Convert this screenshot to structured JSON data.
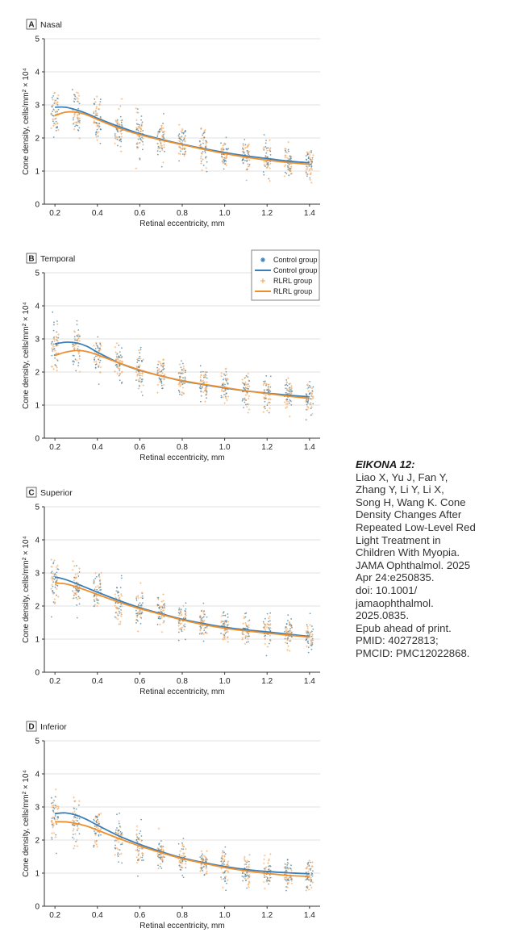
{
  "caption": {
    "title": "EIKONA 12:",
    "text": "Liao X, Yu J, Fan Y,\nZhang Y, Li Y, Li X,\nSong H, Wang K. Cone\nDensity Changes After\nRepeated Low-Level Red\nLight Treatment in\nChildren With Myopia.\nJAMA Ophthalmol. 2025\nApr 24:e250835.\ndoi: 10.1001/\njamaophthalmol.\n2025.0835.\nEpub ahead of print.\nPMID: 40272813;\nPMCID: PMC12022868."
  },
  "legend": {
    "entries": [
      {
        "label": "Control group",
        "kind": "points",
        "color": "#3a7fb8"
      },
      {
        "label": "Control group",
        "kind": "line",
        "color": "#3a7fb8"
      },
      {
        "label": "RLRL group",
        "kind": "points",
        "color": "#f0a24a"
      },
      {
        "label": "RLRL group",
        "kind": "line",
        "color": "#ee8f2c"
      }
    ]
  },
  "colors": {
    "control": "#3a7fb8",
    "rlrl": "#ee8f2c",
    "grid": "#d9d9d9",
    "axis": "#333333"
  },
  "chart_data": [
    {
      "type": "scatter",
      "panel_label": "A",
      "title": "Nasal",
      "xlabel": "Retinal eccentricity, mm",
      "ylabel": "Cone density, cells/mm² × 10⁴",
      "xlim": [
        0.15,
        1.45
      ],
      "ylim": [
        0,
        5
      ],
      "x_ticks": [
        0.2,
        0.4,
        0.6,
        0.8,
        1.0,
        1.2,
        1.4
      ],
      "x_tick_labels": [
        "0.2",
        "0.4",
        "0.6",
        "0.8",
        "1.0",
        "1.2",
        "1.4"
      ],
      "y_ticks": [
        0,
        1,
        2,
        3,
        4,
        5
      ],
      "y_tick_labels": [
        "0",
        "1",
        "2",
        "3",
        "4",
        "5"
      ],
      "grid": "horizontal",
      "series": [
        {
          "name": "Control group",
          "kind": "fit-line",
          "x": [
            0.2,
            0.25,
            0.3,
            0.35,
            0.4,
            0.5,
            0.6,
            0.7,
            0.8,
            0.9,
            1.0,
            1.1,
            1.2,
            1.3,
            1.4
          ],
          "y": [
            2.93,
            2.93,
            2.85,
            2.74,
            2.6,
            2.35,
            2.13,
            1.96,
            1.81,
            1.68,
            1.56,
            1.46,
            1.38,
            1.3,
            1.25
          ]
        },
        {
          "name": "RLRL group",
          "kind": "fit-line",
          "x": [
            0.2,
            0.25,
            0.3,
            0.35,
            0.4,
            0.5,
            0.6,
            0.7,
            0.8,
            0.9,
            1.0,
            1.1,
            1.2,
            1.3,
            1.4
          ],
          "y": [
            2.68,
            2.78,
            2.78,
            2.7,
            2.56,
            2.3,
            2.1,
            1.94,
            1.8,
            1.66,
            1.53,
            1.42,
            1.33,
            1.26,
            1.2
          ]
        }
      ],
      "scatter_mean": [
        2.85,
        2.75,
        2.55,
        2.3,
        2.1,
        1.95,
        1.8,
        1.66,
        1.53,
        1.43,
        1.35,
        1.28,
        1.22
      ],
      "scatter_x": [
        0.2,
        0.3,
        0.4,
        0.5,
        0.6,
        0.7,
        0.8,
        0.9,
        1.0,
        1.1,
        1.2,
        1.3,
        1.4
      ]
    },
    {
      "type": "scatter",
      "panel_label": "B",
      "title": "Temporal",
      "xlabel": "Retinal eccentricity, mm",
      "ylabel": "Cone density, cells/mm² × 10⁴",
      "xlim": [
        0.15,
        1.45
      ],
      "ylim": [
        0,
        5
      ],
      "x_ticks": [
        0.2,
        0.4,
        0.6,
        0.8,
        1.0,
        1.2,
        1.4
      ],
      "x_tick_labels": [
        "0.2",
        "0.4",
        "0.6",
        "0.8",
        "1.0",
        "1.2",
        "1.4"
      ],
      "y_ticks": [
        0,
        1,
        2,
        3,
        4,
        5
      ],
      "y_tick_labels": [
        "0",
        "1",
        "2",
        "3",
        "4",
        "5"
      ],
      "grid": "horizontal",
      "legend_position": "top-right",
      "series": [
        {
          "name": "Control group",
          "kind": "fit-line",
          "x": [
            0.2,
            0.25,
            0.3,
            0.35,
            0.4,
            0.5,
            0.6,
            0.7,
            0.8,
            0.9,
            1.0,
            1.1,
            1.2,
            1.3,
            1.4
          ],
          "y": [
            2.85,
            2.9,
            2.88,
            2.78,
            2.6,
            2.28,
            2.05,
            1.88,
            1.73,
            1.62,
            1.52,
            1.43,
            1.36,
            1.3,
            1.25
          ]
        },
        {
          "name": "RLRL group",
          "kind": "fit-line",
          "x": [
            0.2,
            0.25,
            0.3,
            0.35,
            0.4,
            0.5,
            0.6,
            0.7,
            0.8,
            0.9,
            1.0,
            1.1,
            1.2,
            1.3,
            1.4
          ],
          "y": [
            2.5,
            2.6,
            2.65,
            2.62,
            2.52,
            2.28,
            2.06,
            1.88,
            1.74,
            1.63,
            1.53,
            1.43,
            1.35,
            1.27,
            1.2
          ]
        }
      ],
      "scatter_mean": [
        2.75,
        2.7,
        2.55,
        2.3,
        2.05,
        1.88,
        1.74,
        1.63,
        1.52,
        1.42,
        1.35,
        1.28,
        1.22
      ],
      "scatter_x": [
        0.2,
        0.3,
        0.4,
        0.5,
        0.6,
        0.7,
        0.8,
        0.9,
        1.0,
        1.1,
        1.2,
        1.3,
        1.4
      ]
    },
    {
      "type": "scatter",
      "panel_label": "C",
      "title": "Superior",
      "xlabel": "Retinal eccentricity, mm",
      "ylabel": "Cone density, cells/mm² × 10⁴",
      "xlim": [
        0.15,
        1.45
      ],
      "ylim": [
        0,
        5
      ],
      "x_ticks": [
        0.2,
        0.4,
        0.6,
        0.8,
        1.0,
        1.2,
        1.4
      ],
      "x_tick_labels": [
        "0.2",
        "0.4",
        "0.6",
        "0.8",
        "1.0",
        "1.2",
        "1.4"
      ],
      "y_ticks": [
        0,
        1,
        2,
        3,
        4,
        5
      ],
      "y_tick_labels": [
        "0",
        "1",
        "2",
        "3",
        "4",
        "5"
      ],
      "grid": "horizontal",
      "series": [
        {
          "name": "Control group",
          "kind": "fit-line",
          "x": [
            0.2,
            0.25,
            0.3,
            0.35,
            0.4,
            0.5,
            0.6,
            0.7,
            0.8,
            0.9,
            1.0,
            1.1,
            1.2,
            1.3,
            1.4
          ],
          "y": [
            2.88,
            2.8,
            2.68,
            2.55,
            2.42,
            2.17,
            1.95,
            1.77,
            1.6,
            1.47,
            1.36,
            1.28,
            1.22,
            1.15,
            1.08
          ]
        },
        {
          "name": "RLRL group",
          "kind": "fit-line",
          "x": [
            0.2,
            0.25,
            0.3,
            0.35,
            0.4,
            0.5,
            0.6,
            0.7,
            0.8,
            0.9,
            1.0,
            1.1,
            1.2,
            1.3,
            1.4
          ],
          "y": [
            2.7,
            2.67,
            2.58,
            2.47,
            2.35,
            2.12,
            1.92,
            1.75,
            1.58,
            1.44,
            1.33,
            1.25,
            1.18,
            1.12,
            1.06
          ]
        }
      ],
      "scatter_mean": [
        2.8,
        2.6,
        2.38,
        2.15,
        1.93,
        1.76,
        1.59,
        1.46,
        1.35,
        1.27,
        1.2,
        1.13,
        1.07
      ],
      "scatter_x": [
        0.2,
        0.3,
        0.4,
        0.5,
        0.6,
        0.7,
        0.8,
        0.9,
        1.0,
        1.1,
        1.2,
        1.3,
        1.4
      ]
    },
    {
      "type": "scatter",
      "panel_label": "D",
      "title": "Inferior",
      "xlabel": "Retinal eccentricity, mm",
      "ylabel": "Cone density, cells/mm² × 10⁴",
      "xlim": [
        0.15,
        1.45
      ],
      "ylim": [
        0,
        5
      ],
      "x_ticks": [
        0.2,
        0.4,
        0.6,
        0.8,
        1.0,
        1.2,
        1.4
      ],
      "x_tick_labels": [
        "0.2",
        "0.4",
        "0.6",
        "0.8",
        "1.0",
        "1.2",
        "1.4"
      ],
      "y_ticks": [
        0,
        1,
        2,
        3,
        4,
        5
      ],
      "y_tick_labels": [
        "0",
        "1",
        "2",
        "3",
        "4",
        "5"
      ],
      "grid": "horizontal",
      "series": [
        {
          "name": "Control group",
          "kind": "fit-line",
          "x": [
            0.2,
            0.25,
            0.3,
            0.35,
            0.4,
            0.5,
            0.6,
            0.7,
            0.8,
            0.9,
            1.0,
            1.1,
            1.2,
            1.3,
            1.4
          ],
          "y": [
            2.8,
            2.82,
            2.75,
            2.62,
            2.45,
            2.13,
            1.87,
            1.65,
            1.46,
            1.32,
            1.2,
            1.11,
            1.05,
            1.01,
            0.98
          ]
        },
        {
          "name": "RLRL group",
          "kind": "fit-line",
          "x": [
            0.2,
            0.25,
            0.3,
            0.35,
            0.4,
            0.5,
            0.6,
            0.7,
            0.8,
            0.9,
            1.0,
            1.1,
            1.2,
            1.3,
            1.4
          ],
          "y": [
            2.55,
            2.55,
            2.5,
            2.42,
            2.3,
            2.05,
            1.82,
            1.62,
            1.44,
            1.3,
            1.17,
            1.07,
            0.99,
            0.93,
            0.9
          ]
        }
      ],
      "scatter_mean": [
        2.7,
        2.6,
        2.38,
        2.08,
        1.84,
        1.63,
        1.45,
        1.3,
        1.18,
        1.08,
        1.0,
        0.96,
        0.93
      ],
      "scatter_x": [
        0.2,
        0.3,
        0.4,
        0.5,
        0.6,
        0.7,
        0.8,
        0.9,
        1.0,
        1.1,
        1.2,
        1.3,
        1.4
      ]
    }
  ]
}
